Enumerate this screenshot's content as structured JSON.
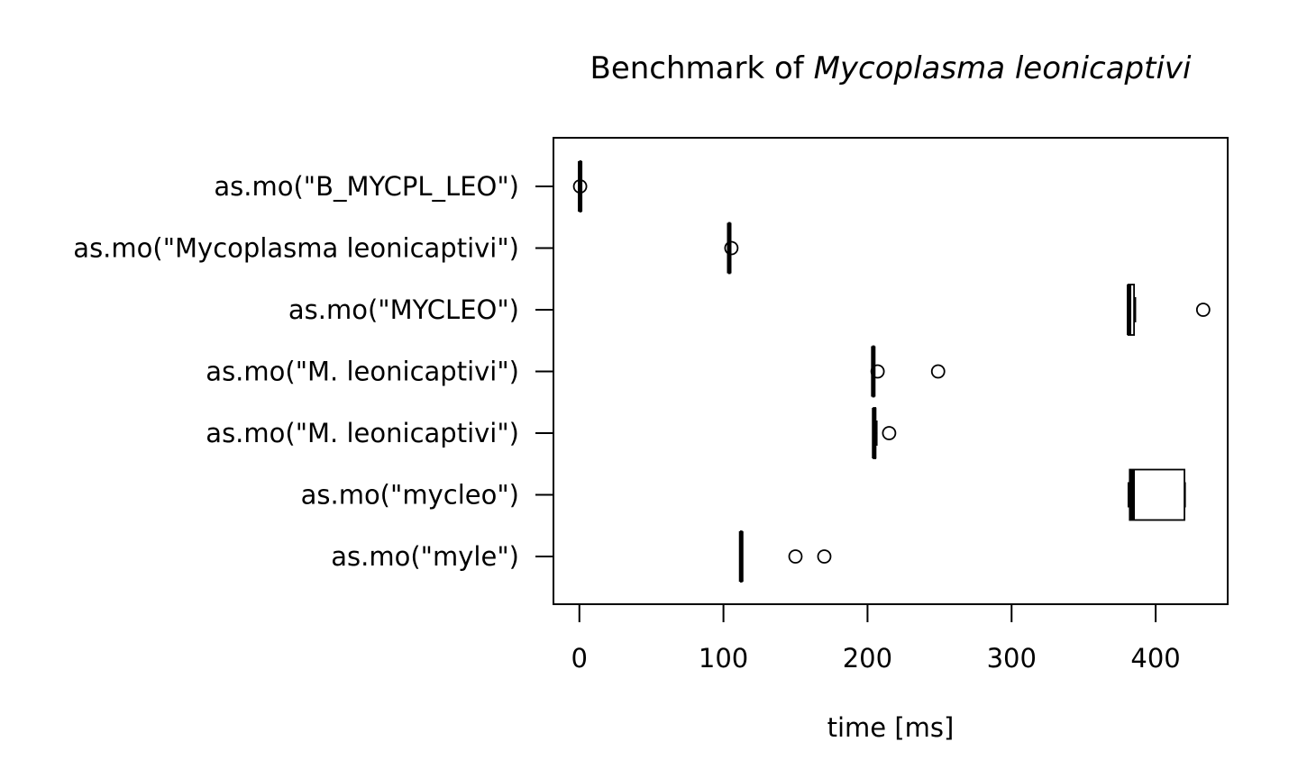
{
  "chart_data": {
    "type": "boxplot",
    "orientation": "horizontal",
    "title_prefix": "Benchmark of ",
    "title_italic": "Mycoplasma leonicaptivi",
    "xlabel": "time [ms]",
    "xlim": [
      -18,
      450
    ],
    "xticks": [
      "0",
      "100",
      "200",
      "300",
      "400"
    ],
    "grid": false,
    "categories": [
      "as.mo(\"B_MYCPL_LEO\")",
      "as.mo(\"Mycoplasma leonicaptivi\")",
      "as.mo(\"MYCLEO\")",
      "as.mo(\"M.  leonicaptivi\")",
      "as.mo(\"M. leonicaptivi\")",
      "as.mo(\"mycleo\")",
      "as.mo(\"myle\")"
    ],
    "boxes": [
      {
        "min": 0.3,
        "q1": 0.4,
        "median": 0.5,
        "q3": 0.6,
        "max": 0.8,
        "outliers": [
          0.5
        ]
      },
      {
        "min": 103.5,
        "q1": 103.8,
        "median": 104.0,
        "q3": 104.3,
        "max": 104.6,
        "outliers": [
          105.5
        ]
      },
      {
        "min": 380.5,
        "q1": 381.0,
        "median": 381.5,
        "q3": 385.0,
        "max": 386.0,
        "outliers": [
          433.0
        ]
      },
      {
        "min": 203.5,
        "q1": 203.8,
        "median": 204.0,
        "q3": 204.3,
        "max": 204.6,
        "outliers": [
          207.0,
          249.0
        ]
      },
      {
        "min": 203.8,
        "q1": 204.2,
        "median": 204.6,
        "q3": 205.5,
        "max": 206.5,
        "outliers": [
          215.0
        ]
      },
      {
        "min": 381.0,
        "q1": 382.0,
        "median": 384.0,
        "q3": 420.0,
        "max": 420.5,
        "outliers": []
      },
      {
        "min": 111.8,
        "q1": 112.0,
        "median": 112.3,
        "q3": 112.6,
        "max": 113.0,
        "outliers": [
          150.0,
          170.0
        ]
      }
    ]
  }
}
